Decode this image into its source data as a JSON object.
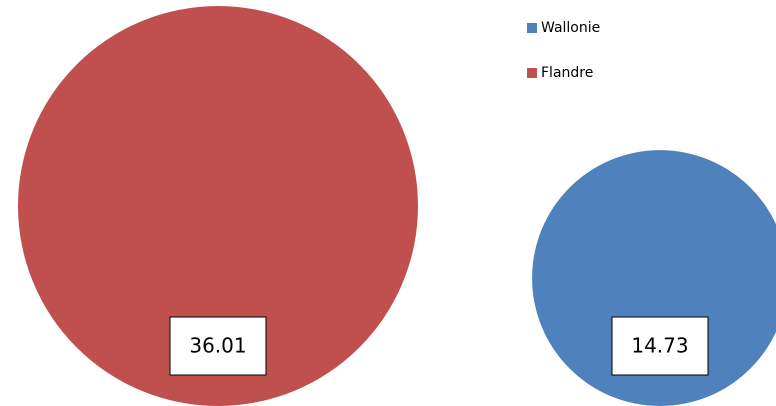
{
  "chart_data": {
    "type": "bubble",
    "series": [
      {
        "name": "Wallonie",
        "color": "#4f81bd",
        "values": [
          14.73
        ]
      },
      {
        "name": "Flandre",
        "color": "#c0504d",
        "values": [
          36.01
        ]
      }
    ]
  }
}
